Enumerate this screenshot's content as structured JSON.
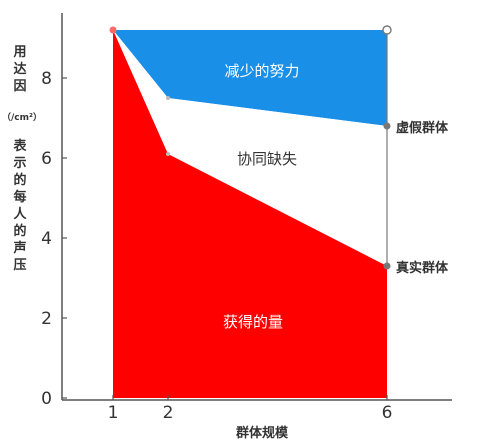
{
  "chart_data": {
    "type": "area",
    "title": "",
    "xlabel": "群体规模",
    "ylabel": "用达因（/cm²）表示的每人的声压",
    "ylabel_chars": [
      "用",
      "达",
      "因",
      "（/cm²）",
      "表",
      "示",
      "的",
      "每",
      "人",
      "的",
      "声",
      "压"
    ],
    "x_ticks": [
      1,
      2,
      6
    ],
    "y_ticks": [
      0,
      2,
      4,
      6,
      8
    ],
    "xlim": [
      1,
      6
    ],
    "ylim": [
      0,
      9.2
    ],
    "series": [
      {
        "name": "虚假群体",
        "x": [
          1,
          2,
          6
        ],
        "y": [
          9.2,
          7.5,
          6.8
        ]
      },
      {
        "name": "真实群体",
        "x": [
          1,
          2,
          6
        ],
        "y": [
          9.2,
          6.1,
          3.3
        ]
      }
    ],
    "top_line": {
      "x": [
        1,
        6
      ],
      "y": [
        9.2,
        9.2
      ]
    },
    "regions": [
      {
        "label": "减少的努力",
        "color": "#1a8fe8"
      },
      {
        "label": "协同缺失",
        "color": "#ffffff"
      },
      {
        "label": "获得的量",
        "color": "#ff0000"
      }
    ],
    "end_labels": [
      "虚假群体",
      "真实群体"
    ],
    "colors": {
      "axis": "#555555",
      "point": "#777777",
      "text": "#333333"
    },
    "grid": false,
    "legend": "none"
  }
}
